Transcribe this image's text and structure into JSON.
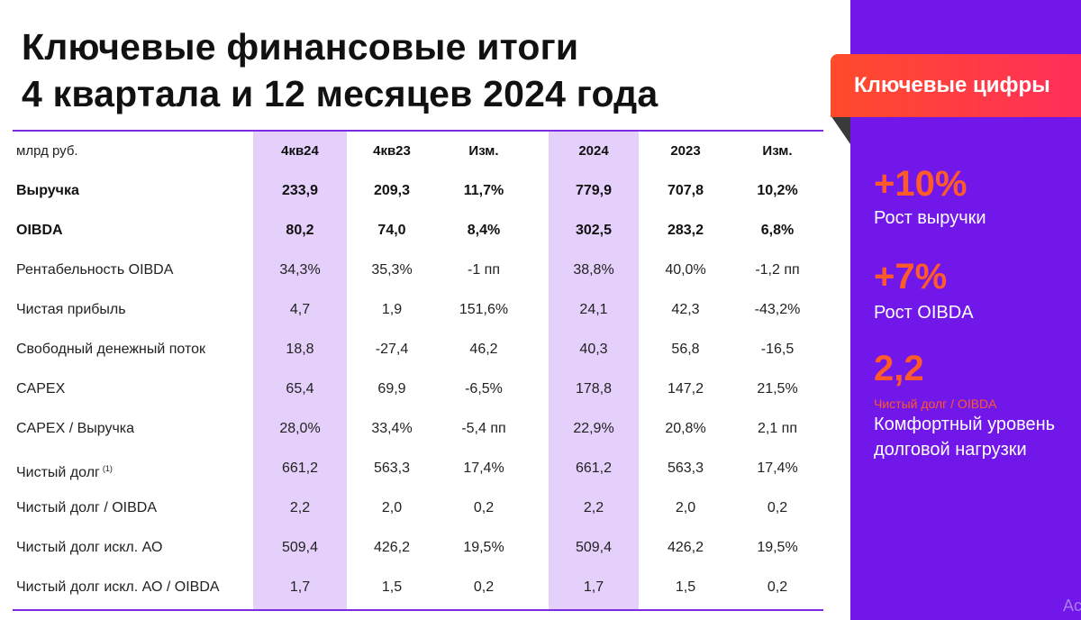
{
  "title": {
    "line1": "Ключевые финансовые итоги",
    "line2": "4 квартала и 12 месяцев 2024 года"
  },
  "table": {
    "headers": [
      "млрд руб.",
      "4кв24",
      "4кв23",
      "Изм.",
      "2024",
      "2023",
      "Изм."
    ],
    "rows": [
      {
        "label": "Выручка",
        "note": "",
        "values": [
          "233,9",
          "209,3",
          "11,7%",
          "779,9",
          "707,8",
          "10,2%"
        ]
      },
      {
        "label": "OIBDA",
        "note": "",
        "values": [
          "80,2",
          "74,0",
          "8,4%",
          "302,5",
          "283,2",
          "6,8%"
        ]
      },
      {
        "label": "Рентабельность OIBDA",
        "note": "",
        "values": [
          "34,3%",
          "35,3%",
          "-1 пп",
          "38,8%",
          "40,0%",
          "-1,2 пп"
        ]
      },
      {
        "label": "Чистая прибыль",
        "note": "",
        "values": [
          "4,7",
          "1,9",
          "151,6%",
          "24,1",
          "42,3",
          "-43,2%"
        ]
      },
      {
        "label": "Свободный денежный поток",
        "note": "",
        "values": [
          "18,8",
          "-27,4",
          "46,2",
          "40,3",
          "56,8",
          "-16,5"
        ]
      },
      {
        "label": "CAPEX",
        "note": "",
        "values": [
          "65,4",
          "69,9",
          "-6,5%",
          "178,8",
          "147,2",
          "21,5%"
        ]
      },
      {
        "label": "CAPEX / Выручка",
        "note": "",
        "values": [
          "28,0%",
          "33,4%",
          "-5,4 пп",
          "22,9%",
          "20,8%",
          "2,1 пп"
        ]
      },
      {
        "label": "Чистый долг",
        "note": "(1)",
        "values": [
          "661,2",
          "563,3",
          "17,4%",
          "661,2",
          "563,3",
          "17,4%"
        ]
      },
      {
        "label": "Чистый долг / OIBDA",
        "note": "",
        "values": [
          "2,2",
          "2,0",
          "0,2",
          "2,2",
          "2,0",
          "0,2"
        ]
      },
      {
        "label": "Чистый долг искл. АО",
        "note": "",
        "values": [
          "509,4",
          "426,2",
          "19,5%",
          "509,4",
          "426,2",
          "19,5%"
        ]
      },
      {
        "label": "Чистый долг искл. АО / OIBDA",
        "note": "",
        "values": [
          "1,7",
          "1,5",
          "0,2",
          "1,7",
          "1,5",
          "0,2"
        ]
      }
    ]
  },
  "sidebar": {
    "tag": "Ключевые цифры",
    "stats": [
      {
        "value": "+10%",
        "label": "Рост выручки"
      },
      {
        "value": "+7%",
        "label": "Рост OIBDA"
      },
      {
        "value": "2,2",
        "sublabel": "Чистый долг / OIBDA",
        "label_line1": "Комфортный уровень",
        "label_line2": "долговой нагрузки"
      }
    ],
    "corner_text": "Ac"
  },
  "colors": {
    "accent_purple": "#7117ea",
    "highlight_column": "#e4d0fb",
    "accent_orange": "#ff5a2a",
    "tag_gradient_start": "#ff4b2b",
    "tag_gradient_end": "#ff2f5a"
  }
}
